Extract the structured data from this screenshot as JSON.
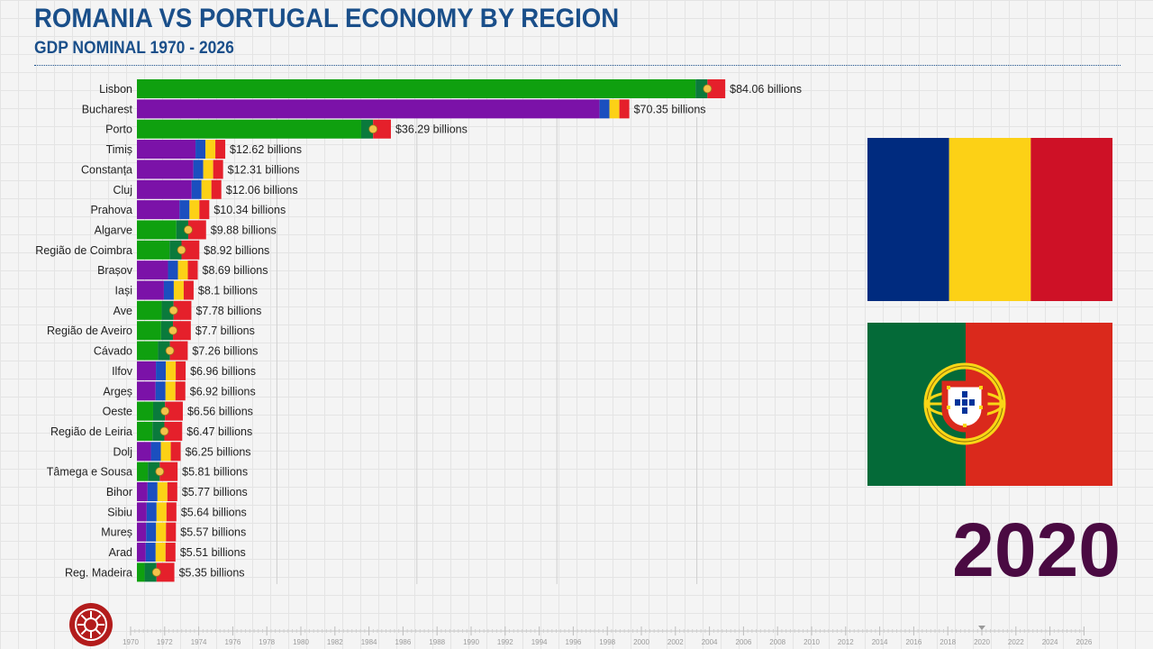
{
  "header": {
    "title": "ROMANIA VS PORTUGAL ECONOMY BY REGION",
    "subtitle": "GDP NOMINAL 1970 - 2026"
  },
  "current_year": "2020",
  "colors": {
    "romania_bar": "#7b12a8",
    "portugal_bar": "#0fa00f",
    "title": "#1a4f8a",
    "year": "#4a0a42"
  },
  "icons": [
    "romania-flag-icon",
    "portugal-flag-icon",
    "channel-logo-icon",
    "timeline-marker-icon"
  ],
  "chart_data": {
    "type": "bar",
    "orientation": "horizontal",
    "unit": "billions USD",
    "xlim": [
      0,
      100
    ],
    "grid": true,
    "categories": [
      "Lisbon",
      "Bucharest",
      "Porto",
      "Timiș",
      "Constanța",
      "Cluj",
      "Prahova",
      "Algarve",
      "Região de Coimbra",
      "Brașov",
      "Iași",
      "Ave",
      "Região de Aveiro",
      "Cávado",
      "Ilfov",
      "Argeș",
      "Oeste",
      "Região de Leiria",
      "Dolj",
      "Tâmega e Sousa",
      "Bihor",
      "Sibiu",
      "Mureș",
      "Arad",
      "Reg. Madeira"
    ],
    "values": [
      84.06,
      70.35,
      36.29,
      12.62,
      12.31,
      12.06,
      10.34,
      9.88,
      8.92,
      8.69,
      8.1,
      7.78,
      7.7,
      7.26,
      6.96,
      6.92,
      6.56,
      6.47,
      6.25,
      5.81,
      5.77,
      5.64,
      5.57,
      5.51,
      5.35
    ],
    "country": [
      "PT",
      "RO",
      "PT",
      "RO",
      "RO",
      "RO",
      "RO",
      "PT",
      "PT",
      "RO",
      "RO",
      "PT",
      "PT",
      "PT",
      "RO",
      "RO",
      "PT",
      "PT",
      "RO",
      "PT",
      "RO",
      "RO",
      "RO",
      "RO",
      "PT"
    ],
    "value_labels": [
      "$84.06 billions",
      "$70.35 billions",
      "$36.29 billions",
      "$12.62 billions",
      "$12.31 billions",
      "$12.06 billions",
      "$10.34 billions",
      "$9.88 billions",
      "$8.92 billions",
      "$8.69 billions",
      "$8.1 billions",
      "$7.78 billions",
      "$7.7 billions",
      "$7.26 billions",
      "$6.96 billions",
      "$6.92 billions",
      "$6.56 billions",
      "$6.47 billions",
      "$6.25 billions",
      "$5.81 billions",
      "$5.77 billions",
      "$5.64 billions",
      "$5.57 billions",
      "$5.51 billions",
      "$5.35 billions"
    ]
  },
  "timeline": {
    "ticks": [
      "1970",
      "1972",
      "1974",
      "1976",
      "1978",
      "1980",
      "1982",
      "1984",
      "1986",
      "1988",
      "1990",
      "1992",
      "1994",
      "1996",
      "1998",
      "2000",
      "2002",
      "2004",
      "2006",
      "2008",
      "2010",
      "2012",
      "2014",
      "2016",
      "2018",
      "2020",
      "2022",
      "2024",
      "2026"
    ],
    "current": "2020"
  }
}
